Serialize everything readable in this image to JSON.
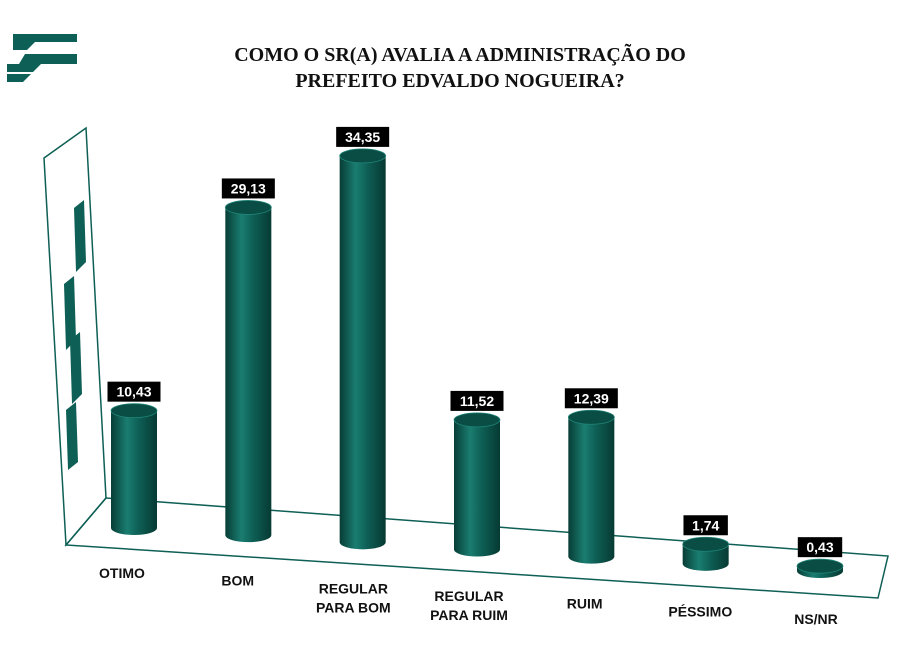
{
  "colors": {
    "bar": "#0e5f55",
    "bar_dark": "#073d36",
    "bar_light": "#1f8577",
    "top": "#0a4d45",
    "label_bg": "#000000"
  },
  "chart_data": {
    "type": "bar",
    "title": [
      "COMO O SR(A) AVALIA A ADMINISTRAÇÃO DO",
      "PREFEITO EDVALDO NOGUEIRA?"
    ],
    "categories": [
      [
        "OTIMO"
      ],
      [
        "BOM"
      ],
      [
        "REGULAR",
        "PARA BOM"
      ],
      [
        "REGULAR",
        "PARA RUIM"
      ],
      [
        "RUIM"
      ],
      [
        "PÉSSIMO"
      ],
      [
        "NS/NR"
      ]
    ],
    "values": [
      10.43,
      29.13,
      34.35,
      11.52,
      12.39,
      1.74,
      0.43
    ],
    "value_labels": [
      "10,43",
      "29,13",
      "34,35",
      "11,52",
      "12,39",
      "1,74",
      "0,43"
    ],
    "ylim": [
      0,
      35
    ],
    "style": "3d-cylinder",
    "grid": false,
    "legend": "none"
  }
}
